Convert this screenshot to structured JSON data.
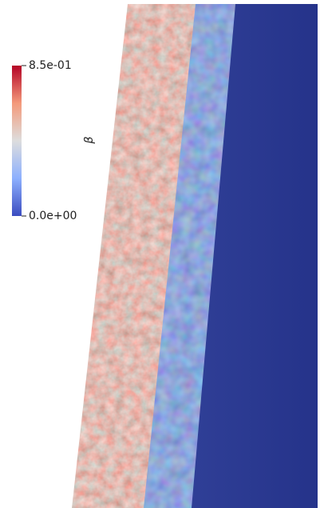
{
  "colorbar": {
    "title": "β",
    "lim": [
      0,
      0.85
    ],
    "ticks": [
      {
        "value": 0.85,
        "label": "8.5e-01"
      },
      {
        "value": 0,
        "label": "0.0e+00"
      }
    ]
  }
}
